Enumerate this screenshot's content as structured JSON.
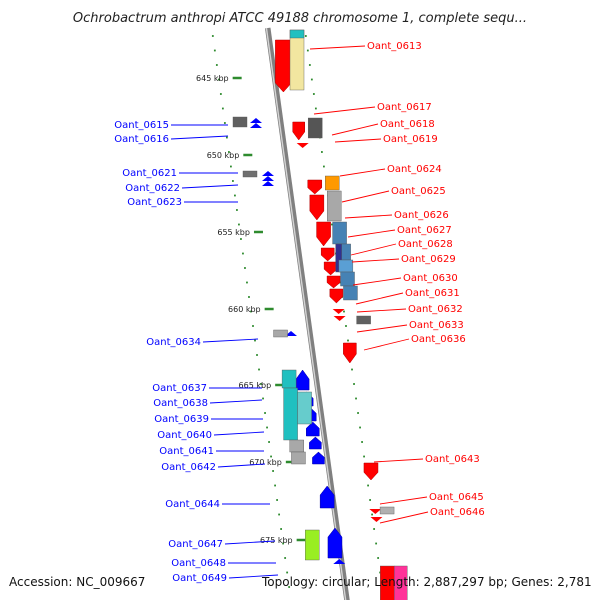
{
  "title": "Ochrobactrum anthropi ATCC 49188 chromosome 1, complete sequ...",
  "accession": "Accession: NC_009667",
  "topology": "Topology: circular; Length: 2,887,297 bp; Genes: 2,781",
  "colors": {
    "reverse_strand": "#ff0000",
    "forward_strand": "#0000ff",
    "backbone": "#808080",
    "tick": "#2e8b2e"
  },
  "kbp_ticks": [
    "645 kbp",
    "650 kbp",
    "655 kbp",
    "660 kbp",
    "665 kbp",
    "670 kbp",
    "675 kbp"
  ],
  "left_genes": [
    "Oant_0615",
    "Oant_0616",
    "Oant_0621",
    "Oant_0622",
    "Oant_0623",
    "Oant_0634",
    "Oant_0637",
    "Oant_0638",
    "Oant_0639",
    "Oant_0640",
    "Oant_0641",
    "Oant_0642",
    "Oant_0644",
    "Oant_0647",
    "Oant_0648",
    "Oant_0649"
  ],
  "right_genes": [
    "Oant_0613",
    "Oant_0617",
    "Oant_0618",
    "Oant_0619",
    "Oant_0624",
    "Oant_0625",
    "Oant_0626",
    "Oant_0627",
    "Oant_0628",
    "Oant_0629",
    "Oant_0630",
    "Oant_0631",
    "Oant_0632",
    "Oant_0633",
    "Oant_0636",
    "Oant_0643",
    "Oant_0645",
    "Oant_0646"
  ]
}
